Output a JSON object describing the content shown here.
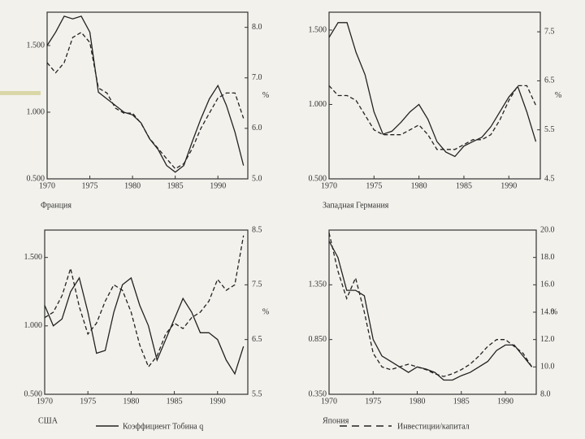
{
  "chart_data": [
    {
      "type": "line",
      "title": "Франция",
      "y2label": "%",
      "x": [
        1970,
        1971,
        1972,
        1973,
        1974,
        1975,
        1976,
        1977,
        1978,
        1979,
        1980,
        1981,
        1982,
        1983,
        1984,
        1985,
        1986,
        1987,
        1988,
        1989,
        1990,
        1991,
        1992,
        1993
      ],
      "series": [
        {
          "color": "#222222",
          "linestyle": "solid",
          "axis": "y",
          "values": [
            1.5,
            1.6,
            1.72,
            1.7,
            1.72,
            1.6,
            1.15,
            1.1,
            1.05,
            1.0,
            0.98,
            0.92,
            0.8,
            0.72,
            0.6,
            0.55,
            0.6,
            0.78,
            0.95,
            1.1,
            1.2,
            1.05,
            0.85,
            0.6
          ]
        },
        {
          "color": "#222222",
          "linestyle": "dashed",
          "axis": "y2",
          "values": [
            7.3,
            7.1,
            7.3,
            7.8,
            7.9,
            7.7,
            6.8,
            6.7,
            6.4,
            6.3,
            6.3,
            6.1,
            5.8,
            5.6,
            5.4,
            5.2,
            5.3,
            5.6,
            6.0,
            6.3,
            6.6,
            6.7,
            6.7,
            6.2
          ]
        }
      ],
      "xlim": [
        1970,
        1993.5
      ],
      "xticks": [
        1970,
        1975,
        1980,
        1985,
        1990
      ],
      "ylim": [
        0.5,
        1.75
      ],
      "yticks": [
        {
          "value": 0.5,
          "label": "0.500"
        },
        {
          "value": 1.0,
          "label": "1.000"
        },
        {
          "value": 1.5,
          "label": "1.500"
        }
      ],
      "y2lim": [
        5.0,
        8.3
      ],
      "y2ticks": [
        {
          "value": 5.0,
          "label": "5.0"
        },
        {
          "value": 6.0,
          "label": "6.0"
        },
        {
          "value": 7.0,
          "label": "7.0"
        },
        {
          "value": 8.0,
          "label": "8.0"
        }
      ]
    },
    {
      "type": "line",
      "title": "Западная Германия",
      "y2label": "%",
      "x": [
        1970,
        1971,
        1972,
        1973,
        1974,
        1975,
        1976,
        1977,
        1978,
        1979,
        1980,
        1981,
        1982,
        1983,
        1984,
        1985,
        1986,
        1987,
        1988,
        1989,
        1990,
        1991,
        1992,
        1993
      ],
      "series": [
        {
          "color": "#222222",
          "linestyle": "solid",
          "axis": "y",
          "values": [
            1.45,
            1.55,
            1.55,
            1.35,
            1.2,
            0.95,
            0.8,
            0.82,
            0.88,
            0.95,
            1.0,
            0.9,
            0.75,
            0.68,
            0.65,
            0.72,
            0.75,
            0.78,
            0.85,
            0.95,
            1.05,
            1.12,
            0.95,
            0.75
          ]
        },
        {
          "color": "#222222",
          "linestyle": "dashed",
          "axis": "y2",
          "values": [
            6.4,
            6.2,
            6.2,
            6.1,
            5.8,
            5.5,
            5.4,
            5.4,
            5.4,
            5.5,
            5.6,
            5.4,
            5.1,
            5.1,
            5.1,
            5.2,
            5.3,
            5.3,
            5.4,
            5.7,
            6.1,
            6.4,
            6.4,
            6.0
          ]
        }
      ],
      "xlim": [
        1970,
        1993.5
      ],
      "xticks": [
        1970,
        1975,
        1980,
        1985,
        1990
      ],
      "ylim": [
        0.5,
        1.62
      ],
      "yticks": [
        {
          "value": 0.5,
          "label": "0.500"
        },
        {
          "value": 1.0,
          "label": "1.000"
        },
        {
          "value": 1.5,
          "label": "1.500"
        }
      ],
      "y2lim": [
        4.5,
        7.9
      ],
      "y2ticks": [
        4.5,
        5.5,
        6.5,
        7.5
      ]
    },
    {
      "type": "line",
      "title": "США",
      "y2label": "%",
      "x": [
        1970,
        1971,
        1972,
        1973,
        1974,
        1975,
        1976,
        1977,
        1978,
        1979,
        1980,
        1981,
        1982,
        1983,
        1984,
        1985,
        1986,
        1987,
        1988,
        1989,
        1990,
        1991,
        1992,
        1993
      ],
      "series": [
        {
          "color": "#222222",
          "linestyle": "solid",
          "axis": "y",
          "values": [
            1.15,
            1.0,
            1.05,
            1.25,
            1.35,
            1.1,
            0.8,
            0.82,
            1.1,
            1.3,
            1.35,
            1.15,
            1.0,
            0.75,
            0.9,
            1.05,
            1.2,
            1.1,
            0.95,
            0.95,
            0.9,
            0.75,
            0.65,
            0.85
          ]
        },
        {
          "color": "#222222",
          "linestyle": "dashed",
          "axis": "y2",
          "values": [
            6.9,
            7.0,
            7.3,
            7.8,
            7.1,
            6.6,
            6.8,
            7.2,
            7.5,
            7.4,
            7.0,
            6.4,
            6.0,
            6.2,
            6.6,
            6.8,
            6.7,
            6.9,
            7.0,
            7.2,
            7.6,
            7.4,
            7.5,
            8.4
          ]
        }
      ],
      "xlim": [
        1970,
        1993.5
      ],
      "xticks": [
        1970,
        1975,
        1980,
        1985,
        1990
      ],
      "ylim": [
        0.5,
        1.7
      ],
      "yticks": [
        {
          "value": 0.5,
          "label": "0.500"
        },
        {
          "value": 1.0,
          "label": "1.000"
        },
        {
          "value": 1.5,
          "label": "1.500"
        }
      ],
      "y2lim": [
        5.5,
        8.5
      ],
      "y2ticks": [
        5.5,
        6.5,
        7.5,
        8.5
      ]
    },
    {
      "type": "line",
      "title": "Япония",
      "y2label": "%",
      "x": [
        1970,
        1971,
        1972,
        1973,
        1974,
        1975,
        1976,
        1977,
        1978,
        1979,
        1980,
        1981,
        1982,
        1983,
        1984,
        1985,
        1986,
        1987,
        1988,
        1989,
        1990,
        1991,
        1992,
        1993
      ],
      "series": [
        {
          "color": "#222222",
          "linestyle": "solid",
          "axis": "y",
          "values": [
            1.75,
            1.6,
            1.3,
            1.3,
            1.25,
            0.85,
            0.7,
            0.65,
            0.6,
            0.55,
            0.6,
            0.58,
            0.55,
            0.48,
            0.48,
            0.52,
            0.55,
            0.6,
            0.65,
            0.75,
            0.8,
            0.8,
            0.7,
            0.6
          ]
        },
        {
          "color": "#222222",
          "linestyle": "dashed",
          "axis": "y2",
          "values": [
            19.8,
            17.0,
            15.0,
            16.5,
            14.0,
            11.0,
            10.0,
            9.8,
            10.0,
            10.2,
            10.0,
            9.8,
            9.5,
            9.3,
            9.5,
            9.8,
            10.2,
            10.8,
            11.5,
            12.0,
            12.0,
            11.5,
            11.0,
            10.0
          ]
        }
      ],
      "xlim": [
        1970,
        1993.5
      ],
      "xticks": [
        1970,
        1975,
        1980,
        1985,
        1990
      ],
      "ylim": [
        0.35,
        1.85
      ],
      "yticks": [
        {
          "value": 0.35,
          "label": "0.350"
        },
        {
          "value": 0.85,
          "label": "0.850"
        },
        {
          "value": 1.35,
          "label": "1.350"
        }
      ],
      "y2lim": [
        8.0,
        20.0
      ],
      "y2ticks": [
        {
          "value": 8.0,
          "label": "8.0"
        },
        {
          "value": 10.0,
          "label": "10.0"
        },
        {
          "value": 12.0,
          "label": "12.0"
        },
        {
          "value": 14.0,
          "label": "14.0"
        },
        {
          "value": 16.0,
          "label": "16.0"
        },
        {
          "value": 18.0,
          "label": "18.0"
        },
        {
          "value": 20.0,
          "label": "20.0"
        }
      ]
    }
  ],
  "legend": [
    {
      "name": "Коэффициент Тобина q",
      "linestyle": "solid",
      "color": "#222222"
    },
    {
      "name": "Инвестиции/капитал",
      "linestyle": "dashed",
      "color": "#222222"
    }
  ]
}
